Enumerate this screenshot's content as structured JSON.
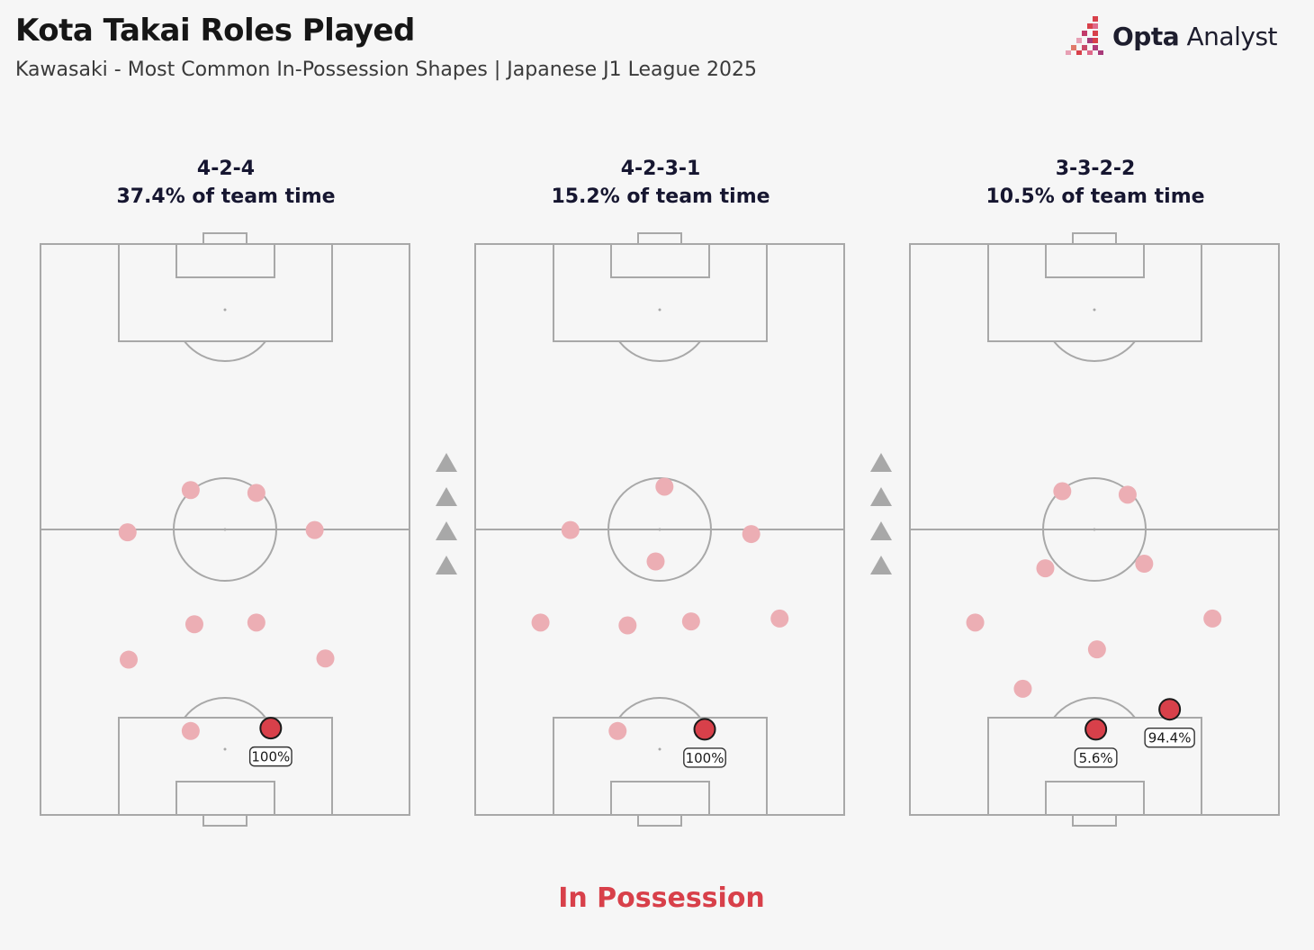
{
  "header": {
    "title": "Kota Takai Roles Played",
    "subtitle": "Kawasaki - Most Common In-Possession Shapes | Japanese J1 League 2025"
  },
  "brand": {
    "name_bold": "Opta",
    "name_light": "Analyst"
  },
  "colors": {
    "background": "#f6f6f6",
    "pitch_line": "#a8a8a8",
    "team_dot": "#ecaeb4",
    "player_dot": "#d8404a",
    "player_outline": "#1a1a1a",
    "arrow": "#a8a8a8",
    "footer": "#d8404a"
  },
  "chart_data": {
    "type": "scatter",
    "direction": "attacking upward",
    "formations": [
      {
        "formation": "4-2-4",
        "team_time_label": "37.4% of team time",
        "team_time_pct": 37.4,
        "team_positions": [
          [
            23.6,
            50.5
          ],
          [
            40.7,
            43.1
          ],
          [
            58.5,
            43.6
          ],
          [
            74.3,
            50.1
          ],
          [
            41.7,
            66.6
          ],
          [
            58.5,
            66.3
          ],
          [
            23.9,
            72.8
          ],
          [
            77.2,
            72.6
          ],
          [
            40.7,
            85.3
          ]
        ],
        "takai": [
          {
            "x": 62.4,
            "y": 84.8,
            "label": "100%",
            "value": 100
          }
        ]
      },
      {
        "formation": "4-2-3-1",
        "team_time_label": "15.2% of team time",
        "team_time_pct": 15.2,
        "team_positions": [
          [
            25.8,
            50.1
          ],
          [
            51.3,
            42.5
          ],
          [
            74.8,
            50.8
          ],
          [
            48.9,
            55.6
          ],
          [
            17.7,
            66.3
          ],
          [
            41.3,
            66.8
          ],
          [
            58.5,
            66.1
          ],
          [
            82.5,
            65.6
          ],
          [
            38.6,
            85.3
          ]
        ],
        "takai": [
          {
            "x": 62.2,
            "y": 85.0,
            "label": "100%",
            "value": 100
          }
        ]
      },
      {
        "formation": "3-3-2-2",
        "team_time_label": "10.5% of team time",
        "team_time_pct": 10.5,
        "team_positions": [
          [
            41.3,
            43.3
          ],
          [
            59.0,
            43.9
          ],
          [
            36.7,
            56.8
          ],
          [
            63.5,
            56.0
          ],
          [
            17.7,
            66.3
          ],
          [
            82.0,
            65.6
          ],
          [
            50.7,
            71.0
          ],
          [
            30.6,
            77.9
          ]
        ],
        "takai": [
          {
            "x": 50.4,
            "y": 85.0,
            "label": "5.6%",
            "value": 5.6
          },
          {
            "x": 70.4,
            "y": 81.5,
            "label": "94.4%",
            "value": 94.4
          }
        ]
      }
    ]
  },
  "footer": {
    "label": "In Possession"
  }
}
